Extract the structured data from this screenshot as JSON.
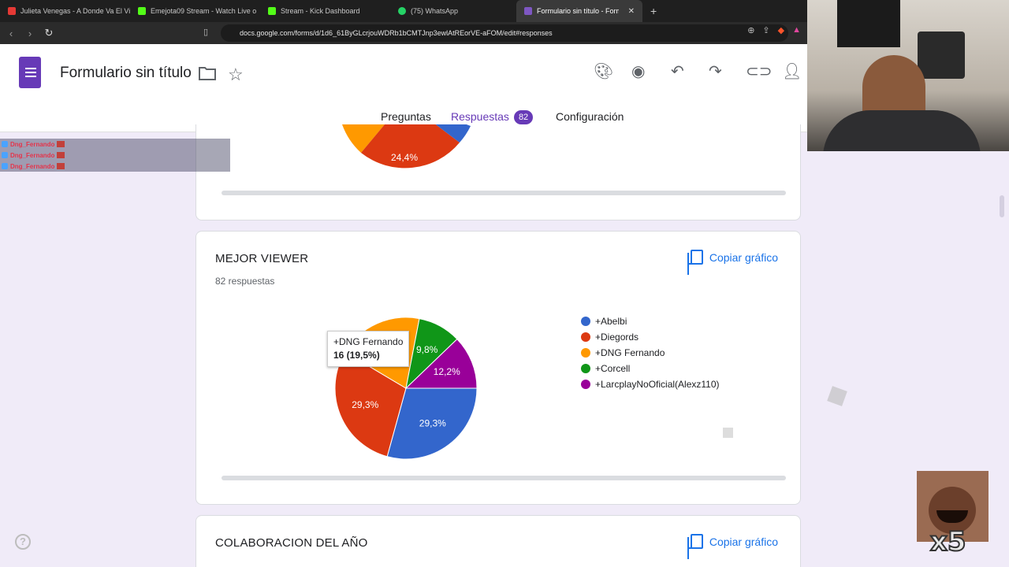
{
  "browser": {
    "tabs": [
      {
        "label": "Julieta Venegas - A Donde Va El Vien",
        "color": "#e53935"
      },
      {
        "label": "Emejota09 Stream - Watch Live o",
        "color": "#53fc18"
      },
      {
        "label": "Stream - Kick Dashboard",
        "color": "#53fc18"
      },
      {
        "label": "(75) WhatsApp",
        "color": "#25d366"
      },
      {
        "label": "Formulario sin título - Formulari",
        "color": "#7e57c2",
        "active": true
      }
    ],
    "url": "docs.google.com/forms/d/1d6_61ByGLcrjouWDRb1bCMTJnp3ewlAtREorVE-aFOM/edit#responses"
  },
  "forms": {
    "title": "Formulario sin título",
    "tabs": {
      "questions": "Preguntas",
      "responses": "Respuestas",
      "responses_count": "82",
      "settings": "Configuración"
    }
  },
  "previous_card": {
    "visible_label": "24,4%"
  },
  "card_viewer": {
    "title": "MEJOR VIEWER",
    "subtitle": "82 respuestas",
    "copy_label": "Copiar gráfico",
    "tooltip_name": "+DNG Fernando",
    "tooltip_value": "16 (19,5%)"
  },
  "card_collab": {
    "title": "COLABORACION DEL AÑO",
    "copy_label": "Copiar gráfico"
  },
  "chart_data": {
    "type": "pie",
    "categories": [
      "+Abelbi",
      "+Diegords",
      "+DNG Fernando",
      "+Corcell",
      "+LarcplayNoOficial(Alexz110)"
    ],
    "values": [
      29.3,
      29.3,
      19.5,
      9.8,
      12.2
    ],
    "labels": [
      "29,3%",
      "29,3%",
      "",
      "9,8%",
      "12,2%"
    ],
    "colors": [
      "#3366cc",
      "#dc3912",
      "#ff9900",
      "#109618",
      "#990099"
    ],
    "legend": "right"
  },
  "overlay": {
    "chat_user": "Dng_Fernando",
    "emote_text": "x5",
    "help": "?"
  }
}
